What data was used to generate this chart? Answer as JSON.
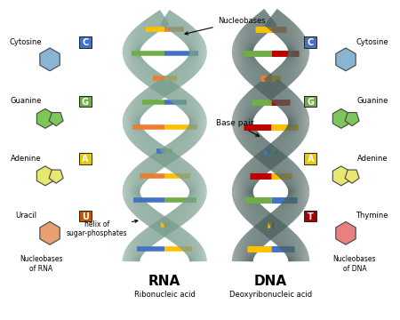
{
  "background_color": "#ffffff",
  "rna_label": "RNA",
  "rna_sublabel": "Ribonucleic acid",
  "dna_label": "DNA",
  "dna_sublabel": "Deoxyribonucleic acid",
  "nucleobases_label": "Nucleobases",
  "base_pair_label": "Base pair",
  "helix_label": "helix of\nsugar-phosphates",
  "rna_bases": [
    {
      "name": "Cytosine",
      "letter": "C",
      "color": "#4472c4",
      "mol_color": "#8ab4d4",
      "shape": "hex"
    },
    {
      "name": "Guanine",
      "letter": "G",
      "color": "#70ad47",
      "mol_color": "#7dc65a",
      "shape": "bicyclic"
    },
    {
      "name": "Adenine",
      "letter": "A",
      "color": "#e8c800",
      "mol_color": "#e8e870",
      "shape": "bicyclic"
    },
    {
      "name": "Uracil",
      "letter": "U",
      "color": "#c05800",
      "mol_color": "#e8a070",
      "shape": "hex"
    }
  ],
  "dna_bases": [
    {
      "name": "Cytosine",
      "letter": "C",
      "color": "#4472c4",
      "mol_color": "#8ab4d4",
      "shape": "hex"
    },
    {
      "name": "Guanine",
      "letter": "G",
      "color": "#70ad47",
      "mol_color": "#7dc65a",
      "shape": "bicyclic"
    },
    {
      "name": "Adenine",
      "letter": "A",
      "color": "#e8c800",
      "mol_color": "#e8e870",
      "shape": "bicyclic"
    },
    {
      "name": "Thymine",
      "letter": "T",
      "color": "#aa0000",
      "mol_color": "#e88080",
      "shape": "hex"
    }
  ],
  "strand_color_rna": "#7a9e8e",
  "strand_color_dna": "#4d6460",
  "pair_colors_rna": [
    [
      "#ed7d31",
      "#ffc000"
    ],
    [
      "#4472c4",
      "#70ad47"
    ],
    [
      "#ffc000",
      "#ed7d31"
    ],
    [
      "#70ad47",
      "#4472c4"
    ],
    [
      "#ed7d31",
      "#ffc000"
    ],
    [
      "#4472c4",
      "#70ad47"
    ],
    [
      "#ffc000",
      "#ed7d31"
    ],
    [
      "#70ad47",
      "#4472c4"
    ],
    [
      "#ed7d31",
      "#ffc000"
    ],
    [
      "#4472c4",
      "#ffc000"
    ]
  ],
  "pair_colors_dna": [
    [
      "#ed7d31",
      "#ffc000"
    ],
    [
      "#c00000",
      "#70ad47"
    ],
    [
      "#ffc000",
      "#ed7d31"
    ],
    [
      "#70ad47",
      "#c00000"
    ],
    [
      "#c00000",
      "#ffc000"
    ],
    [
      "#4472c4",
      "#70ad47"
    ],
    [
      "#ffc000",
      "#c00000"
    ],
    [
      "#4472c4",
      "#70ad47"
    ],
    [
      "#c00000",
      "#ffc000"
    ],
    [
      "#ffc000",
      "#4472c4"
    ]
  ]
}
